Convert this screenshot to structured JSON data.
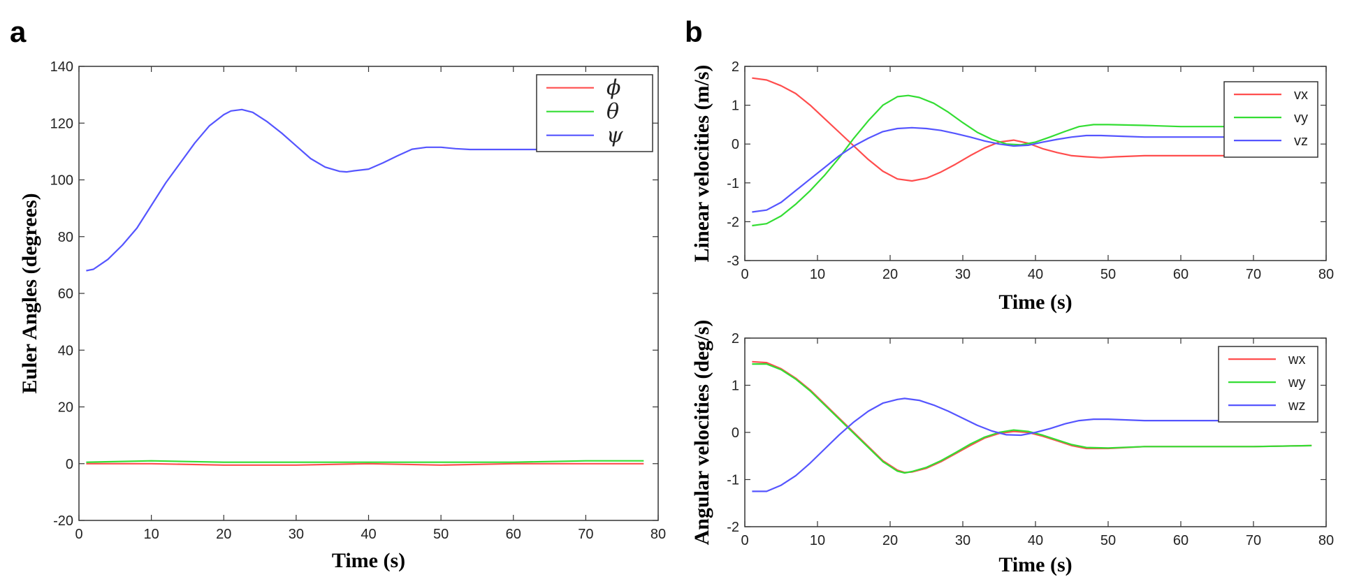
{
  "panels": [
    {
      "letter": "a"
    },
    {
      "letter": "b"
    }
  ],
  "chart_data": [
    {
      "type": "line",
      "panel": "a",
      "xlabel": "Time (s)",
      "ylabel": "Euler Angles (degrees)",
      "xlim": [
        0,
        80
      ],
      "ylim": [
        -20,
        140
      ],
      "xticks": [
        0,
        10,
        20,
        30,
        40,
        50,
        60,
        70,
        80
      ],
      "yticks": [
        -20,
        0,
        20,
        40,
        60,
        80,
        100,
        120,
        140
      ],
      "grid": false,
      "legend": "top-right",
      "series": [
        {
          "name": "ϕ",
          "color": "#ff4d4d",
          "x": [
            1,
            10,
            20,
            30,
            40,
            50,
            60,
            70,
            78
          ],
          "y": [
            0,
            0,
            -0.5,
            -0.5,
            0,
            -0.5,
            0,
            0,
            0
          ]
        },
        {
          "name": "θ",
          "color": "#33dd33",
          "x": [
            1,
            10,
            20,
            30,
            40,
            50,
            60,
            70,
            78
          ],
          "y": [
            0.5,
            1,
            0.5,
            0.5,
            0.5,
            0.5,
            0.5,
            1,
            1
          ]
        },
        {
          "name": "ψ",
          "color": "#5555ff",
          "x": [
            1,
            2,
            4,
            6,
            8,
            10,
            12,
            14,
            16,
            18,
            20,
            21,
            22.5,
            24,
            26,
            28,
            30,
            32,
            34,
            36,
            37,
            38,
            40,
            42,
            44,
            46,
            48,
            50,
            52,
            54,
            56,
            58,
            60,
            62,
            64,
            66
          ],
          "y": [
            68,
            68.5,
            72,
            77,
            83,
            91,
            99,
            106,
            113,
            119,
            123,
            124.3,
            124.8,
            123.8,
            120.5,
            116.5,
            112,
            107.5,
            104.5,
            103,
            102.8,
            103.2,
            103.8,
            106,
            108.5,
            110.8,
            111.5,
            111.5,
            111,
            110.7,
            110.7,
            110.7,
            110.7,
            110.7,
            110.7,
            110.7
          ]
        }
      ]
    },
    {
      "type": "line",
      "panel": "b-top",
      "xlabel": "Time (s)",
      "ylabel": "Linear velocities (m/s)",
      "xlim": [
        0,
        80
      ],
      "ylim": [
        -3,
        2
      ],
      "xticks": [
        0,
        10,
        20,
        30,
        40,
        50,
        60,
        70,
        80
      ],
      "yticks": [
        -3,
        -2,
        -1,
        0,
        1,
        2
      ],
      "grid": false,
      "legend": "top-right",
      "series": [
        {
          "name": "vx",
          "color": "#ff4d4d",
          "x": [
            1,
            3,
            5,
            7,
            9,
            11,
            13,
            15,
            17,
            19,
            21,
            23,
            25,
            27,
            29,
            31,
            33,
            35,
            37,
            39,
            41,
            43,
            45,
            47,
            49,
            51,
            55,
            60,
            66
          ],
          "y": [
            1.7,
            1.65,
            1.5,
            1.3,
            1.0,
            0.65,
            0.3,
            -0.05,
            -0.4,
            -0.7,
            -0.9,
            -0.95,
            -0.88,
            -0.72,
            -0.52,
            -0.3,
            -0.1,
            0.05,
            0.1,
            0.02,
            -0.12,
            -0.22,
            -0.3,
            -0.33,
            -0.35,
            -0.33,
            -0.3,
            -0.3,
            -0.3
          ]
        },
        {
          "name": "vy",
          "color": "#33dd33",
          "x": [
            1,
            3,
            5,
            7,
            9,
            11,
            13,
            15,
            17,
            19,
            21,
            22.5,
            24,
            26,
            28,
            30,
            32,
            34,
            36,
            38,
            40,
            42,
            44,
            46,
            48,
            50,
            55,
            60,
            66
          ],
          "y": [
            -2.1,
            -2.05,
            -1.85,
            -1.55,
            -1.2,
            -0.8,
            -0.35,
            0.15,
            0.6,
            1.0,
            1.22,
            1.25,
            1.2,
            1.05,
            0.82,
            0.55,
            0.3,
            0.12,
            0.0,
            -0.02,
            0.05,
            0.18,
            0.32,
            0.45,
            0.5,
            0.5,
            0.48,
            0.45,
            0.45
          ]
        },
        {
          "name": "vz",
          "color": "#5555ff",
          "x": [
            1,
            3,
            5,
            7,
            9,
            11,
            13,
            15,
            17,
            19,
            21,
            23,
            25,
            27,
            29,
            31,
            33,
            35,
            37,
            39,
            41,
            43,
            45,
            47,
            49,
            52,
            55,
            60,
            66
          ],
          "y": [
            -1.75,
            -1.7,
            -1.5,
            -1.2,
            -0.9,
            -0.6,
            -0.3,
            -0.05,
            0.15,
            0.32,
            0.4,
            0.42,
            0.4,
            0.35,
            0.27,
            0.18,
            0.08,
            0.0,
            -0.05,
            -0.03,
            0.05,
            0.12,
            0.18,
            0.22,
            0.22,
            0.2,
            0.18,
            0.18,
            0.18
          ]
        }
      ]
    },
    {
      "type": "line",
      "panel": "b-bottom",
      "xlabel": "Time (s)",
      "ylabel": "Angular velocities (deg/s)",
      "xlim": [
        0,
        80
      ],
      "ylim": [
        -2,
        2
      ],
      "xticks": [
        0,
        10,
        20,
        30,
        40,
        50,
        60,
        70,
        80
      ],
      "yticks": [
        -2,
        -1,
        0,
        1,
        2
      ],
      "grid": false,
      "legend": "top-right",
      "series": [
        {
          "name": "wx",
          "color": "#ff4d4d",
          "x": [
            1,
            3,
            5,
            7,
            9,
            11,
            13,
            15,
            17,
            19,
            21,
            22,
            23,
            25,
            27,
            29,
            31,
            33,
            35,
            37,
            39,
            41,
            43,
            45,
            47,
            50,
            55,
            60,
            70,
            78
          ],
          "y": [
            1.5,
            1.48,
            1.35,
            1.15,
            0.9,
            0.6,
            0.3,
            0.0,
            -0.3,
            -0.6,
            -0.8,
            -0.85,
            -0.84,
            -0.76,
            -0.62,
            -0.45,
            -0.28,
            -0.12,
            -0.02,
            0.02,
            0.0,
            -0.08,
            -0.18,
            -0.28,
            -0.34,
            -0.34,
            -0.3,
            -0.3,
            -0.3,
            -0.28
          ]
        },
        {
          "name": "wy",
          "color": "#33dd33",
          "x": [
            1,
            3,
            5,
            7,
            9,
            11,
            13,
            15,
            17,
            19,
            21,
            22,
            23,
            25,
            27,
            29,
            31,
            33,
            35,
            37,
            39,
            41,
            43,
            45,
            47,
            50,
            55,
            60,
            70,
            78
          ],
          "y": [
            1.45,
            1.45,
            1.33,
            1.13,
            0.88,
            0.58,
            0.28,
            -0.02,
            -0.32,
            -0.62,
            -0.82,
            -0.86,
            -0.83,
            -0.74,
            -0.6,
            -0.43,
            -0.25,
            -0.1,
            0.0,
            0.05,
            0.02,
            -0.06,
            -0.16,
            -0.26,
            -0.32,
            -0.33,
            -0.3,
            -0.3,
            -0.3,
            -0.28
          ]
        },
        {
          "name": "wz",
          "color": "#5555ff",
          "x": [
            1,
            3,
            5,
            7,
            9,
            11,
            13,
            15,
            17,
            19,
            21,
            22,
            24,
            26,
            28,
            30,
            32,
            34,
            36,
            38,
            40,
            42,
            44,
            46,
            48,
            50,
            55,
            60,
            66
          ],
          "y": [
            -1.25,
            -1.25,
            -1.12,
            -0.92,
            -0.65,
            -0.35,
            -0.05,
            0.22,
            0.45,
            0.62,
            0.7,
            0.72,
            0.68,
            0.58,
            0.45,
            0.3,
            0.15,
            0.03,
            -0.05,
            -0.06,
            0.0,
            0.08,
            0.18,
            0.25,
            0.28,
            0.28,
            0.25,
            0.25,
            0.25
          ]
        }
      ]
    }
  ]
}
